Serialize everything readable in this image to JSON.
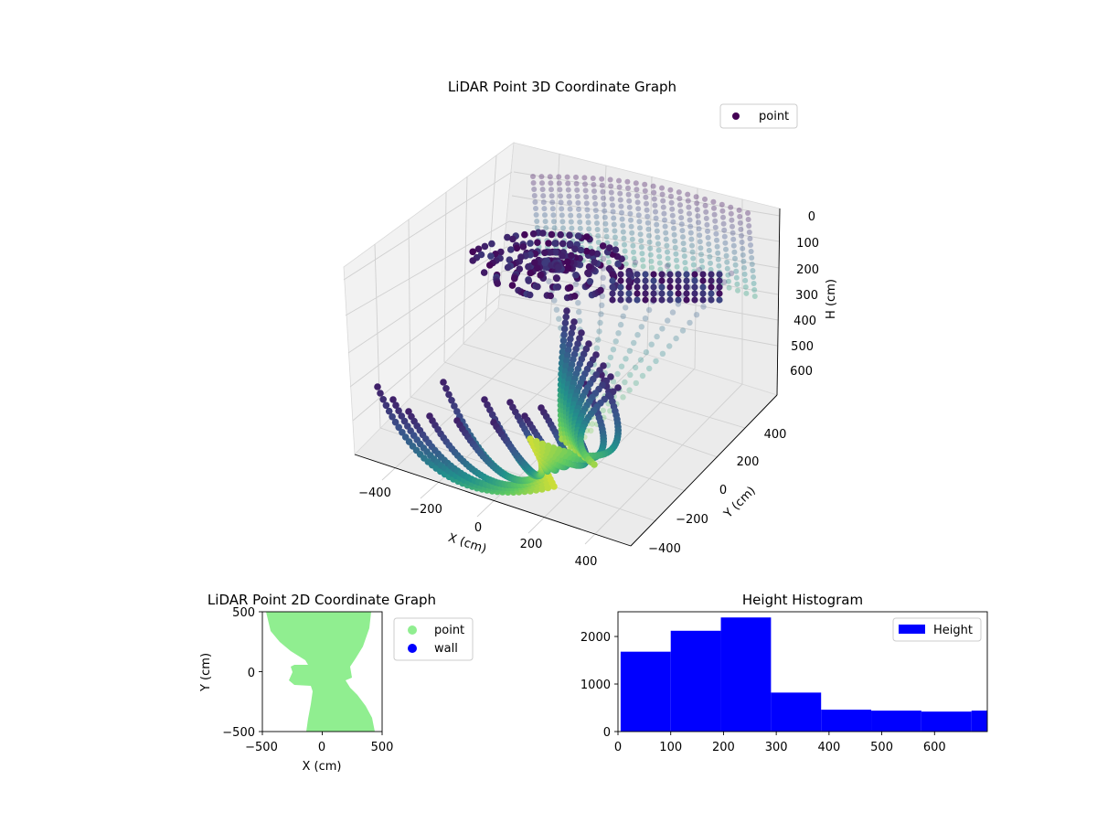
{
  "colors": {
    "viridis": [
      "#440154",
      "#3b528b",
      "#21918c",
      "#5ec962",
      "#fde725"
    ],
    "point2d": "#90ee90",
    "wall": "#0000ff",
    "hist": "#0000ff",
    "pane_light": "#f2f2f2",
    "pane_mid": "#ebebeb",
    "grid": "#cccccc"
  },
  "chart_data": [
    {
      "type": "scatter",
      "title": "LiDAR Point 3D Coordinate Graph",
      "xlabel": "X (cm)",
      "ylabel": "Y (cm)",
      "zlabel": "H (cm)",
      "xticks": [
        "−400",
        "−200",
        "0",
        "200",
        "400"
      ],
      "yticks": [
        "−400",
        "−200",
        "0",
        "200",
        "400"
      ],
      "zticks": [
        "0",
        "100",
        "200",
        "300",
        "400",
        "500",
        "600"
      ],
      "xlim": [
        -500,
        500
      ],
      "ylim": [
        -500,
        500
      ],
      "zlim": [
        0,
        700
      ],
      "z_axis_inverted": true,
      "colormap": "viridis",
      "legend": {
        "position": "upper-right",
        "entries": [
          "point"
        ]
      },
      "grid": true
    },
    {
      "type": "scatter",
      "title": "LiDAR Point 2D Coordinate Graph",
      "xlabel": "X (cm)",
      "ylabel": "Y (cm)",
      "xticks": [
        "−500",
        "0",
        "500"
      ],
      "yticks": [
        "−500",
        "0",
        "500"
      ],
      "xlim": [
        -500,
        500
      ],
      "ylim": [
        -500,
        500
      ],
      "legend": {
        "position": "outside-right",
        "entries": [
          "point",
          "wall"
        ]
      }
    },
    {
      "type": "bar",
      "title": "Height Histogram",
      "xticks": [
        "0",
        "100",
        "200",
        "300",
        "400",
        "500",
        "600"
      ],
      "yticks": [
        "0",
        "1000",
        "2000"
      ],
      "bin_edges": [
        5,
        100,
        195,
        290,
        385,
        480,
        575,
        670
      ],
      "values": [
        1680,
        2120,
        2400,
        820,
        460,
        440,
        420
      ],
      "trailing_bin": {
        "x0": 670,
        "value": 440
      },
      "xlim": [
        0,
        700
      ],
      "ylim": [
        0,
        2520
      ],
      "legend": {
        "position": "upper-right",
        "entries": [
          "Height"
        ]
      }
    }
  ]
}
